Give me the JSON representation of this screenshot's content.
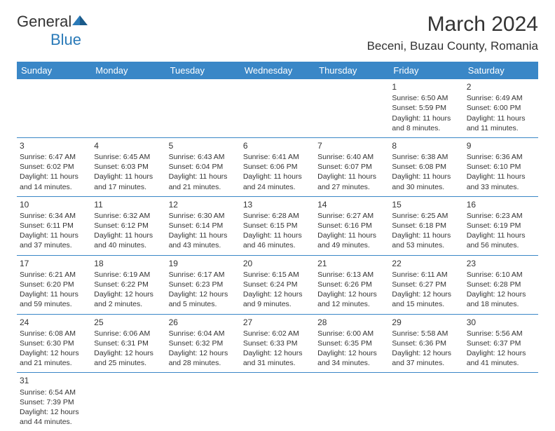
{
  "logo": {
    "text1": "General",
    "text2": "Blue"
  },
  "title": "March 2024",
  "location": "Beceni, Buzau County, Romania",
  "columns": [
    "Sunday",
    "Monday",
    "Tuesday",
    "Wednesday",
    "Thursday",
    "Friday",
    "Saturday"
  ],
  "colors": {
    "header_bg": "#3a87c7",
    "header_text": "#ffffff",
    "border": "#3a87c7",
    "logo_blue": "#2a7ab8",
    "text": "#333333",
    "background": "#ffffff"
  },
  "fonts": {
    "title_size": 30,
    "location_size": 17,
    "header_size": 13,
    "cell_size": 10.5,
    "daynum_size": 12
  },
  "weeks": [
    [
      null,
      null,
      null,
      null,
      null,
      {
        "day": "1",
        "sunrise": "Sunrise: 6:50 AM",
        "sunset": "Sunset: 5:59 PM",
        "daylight": "Daylight: 11 hours and 8 minutes."
      },
      {
        "day": "2",
        "sunrise": "Sunrise: 6:49 AM",
        "sunset": "Sunset: 6:00 PM",
        "daylight": "Daylight: 11 hours and 11 minutes."
      }
    ],
    [
      {
        "day": "3",
        "sunrise": "Sunrise: 6:47 AM",
        "sunset": "Sunset: 6:02 PM",
        "daylight": "Daylight: 11 hours and 14 minutes."
      },
      {
        "day": "4",
        "sunrise": "Sunrise: 6:45 AM",
        "sunset": "Sunset: 6:03 PM",
        "daylight": "Daylight: 11 hours and 17 minutes."
      },
      {
        "day": "5",
        "sunrise": "Sunrise: 6:43 AM",
        "sunset": "Sunset: 6:04 PM",
        "daylight": "Daylight: 11 hours and 21 minutes."
      },
      {
        "day": "6",
        "sunrise": "Sunrise: 6:41 AM",
        "sunset": "Sunset: 6:06 PM",
        "daylight": "Daylight: 11 hours and 24 minutes."
      },
      {
        "day": "7",
        "sunrise": "Sunrise: 6:40 AM",
        "sunset": "Sunset: 6:07 PM",
        "daylight": "Daylight: 11 hours and 27 minutes."
      },
      {
        "day": "8",
        "sunrise": "Sunrise: 6:38 AM",
        "sunset": "Sunset: 6:08 PM",
        "daylight": "Daylight: 11 hours and 30 minutes."
      },
      {
        "day": "9",
        "sunrise": "Sunrise: 6:36 AM",
        "sunset": "Sunset: 6:10 PM",
        "daylight": "Daylight: 11 hours and 33 minutes."
      }
    ],
    [
      {
        "day": "10",
        "sunrise": "Sunrise: 6:34 AM",
        "sunset": "Sunset: 6:11 PM",
        "daylight": "Daylight: 11 hours and 37 minutes."
      },
      {
        "day": "11",
        "sunrise": "Sunrise: 6:32 AM",
        "sunset": "Sunset: 6:12 PM",
        "daylight": "Daylight: 11 hours and 40 minutes."
      },
      {
        "day": "12",
        "sunrise": "Sunrise: 6:30 AM",
        "sunset": "Sunset: 6:14 PM",
        "daylight": "Daylight: 11 hours and 43 minutes."
      },
      {
        "day": "13",
        "sunrise": "Sunrise: 6:28 AM",
        "sunset": "Sunset: 6:15 PM",
        "daylight": "Daylight: 11 hours and 46 minutes."
      },
      {
        "day": "14",
        "sunrise": "Sunrise: 6:27 AM",
        "sunset": "Sunset: 6:16 PM",
        "daylight": "Daylight: 11 hours and 49 minutes."
      },
      {
        "day": "15",
        "sunrise": "Sunrise: 6:25 AM",
        "sunset": "Sunset: 6:18 PM",
        "daylight": "Daylight: 11 hours and 53 minutes."
      },
      {
        "day": "16",
        "sunrise": "Sunrise: 6:23 AM",
        "sunset": "Sunset: 6:19 PM",
        "daylight": "Daylight: 11 hours and 56 minutes."
      }
    ],
    [
      {
        "day": "17",
        "sunrise": "Sunrise: 6:21 AM",
        "sunset": "Sunset: 6:20 PM",
        "daylight": "Daylight: 11 hours and 59 minutes."
      },
      {
        "day": "18",
        "sunrise": "Sunrise: 6:19 AM",
        "sunset": "Sunset: 6:22 PM",
        "daylight": "Daylight: 12 hours and 2 minutes."
      },
      {
        "day": "19",
        "sunrise": "Sunrise: 6:17 AM",
        "sunset": "Sunset: 6:23 PM",
        "daylight": "Daylight: 12 hours and 5 minutes."
      },
      {
        "day": "20",
        "sunrise": "Sunrise: 6:15 AM",
        "sunset": "Sunset: 6:24 PM",
        "daylight": "Daylight: 12 hours and 9 minutes."
      },
      {
        "day": "21",
        "sunrise": "Sunrise: 6:13 AM",
        "sunset": "Sunset: 6:26 PM",
        "daylight": "Daylight: 12 hours and 12 minutes."
      },
      {
        "day": "22",
        "sunrise": "Sunrise: 6:11 AM",
        "sunset": "Sunset: 6:27 PM",
        "daylight": "Daylight: 12 hours and 15 minutes."
      },
      {
        "day": "23",
        "sunrise": "Sunrise: 6:10 AM",
        "sunset": "Sunset: 6:28 PM",
        "daylight": "Daylight: 12 hours and 18 minutes."
      }
    ],
    [
      {
        "day": "24",
        "sunrise": "Sunrise: 6:08 AM",
        "sunset": "Sunset: 6:30 PM",
        "daylight": "Daylight: 12 hours and 21 minutes."
      },
      {
        "day": "25",
        "sunrise": "Sunrise: 6:06 AM",
        "sunset": "Sunset: 6:31 PM",
        "daylight": "Daylight: 12 hours and 25 minutes."
      },
      {
        "day": "26",
        "sunrise": "Sunrise: 6:04 AM",
        "sunset": "Sunset: 6:32 PM",
        "daylight": "Daylight: 12 hours and 28 minutes."
      },
      {
        "day": "27",
        "sunrise": "Sunrise: 6:02 AM",
        "sunset": "Sunset: 6:33 PM",
        "daylight": "Daylight: 12 hours and 31 minutes."
      },
      {
        "day": "28",
        "sunrise": "Sunrise: 6:00 AM",
        "sunset": "Sunset: 6:35 PM",
        "daylight": "Daylight: 12 hours and 34 minutes."
      },
      {
        "day": "29",
        "sunrise": "Sunrise: 5:58 AM",
        "sunset": "Sunset: 6:36 PM",
        "daylight": "Daylight: 12 hours and 37 minutes."
      },
      {
        "day": "30",
        "sunrise": "Sunrise: 5:56 AM",
        "sunset": "Sunset: 6:37 PM",
        "daylight": "Daylight: 12 hours and 41 minutes."
      }
    ],
    [
      {
        "day": "31",
        "sunrise": "Sunrise: 6:54 AM",
        "sunset": "Sunset: 7:39 PM",
        "daylight": "Daylight: 12 hours and 44 minutes."
      },
      null,
      null,
      null,
      null,
      null,
      null
    ]
  ]
}
